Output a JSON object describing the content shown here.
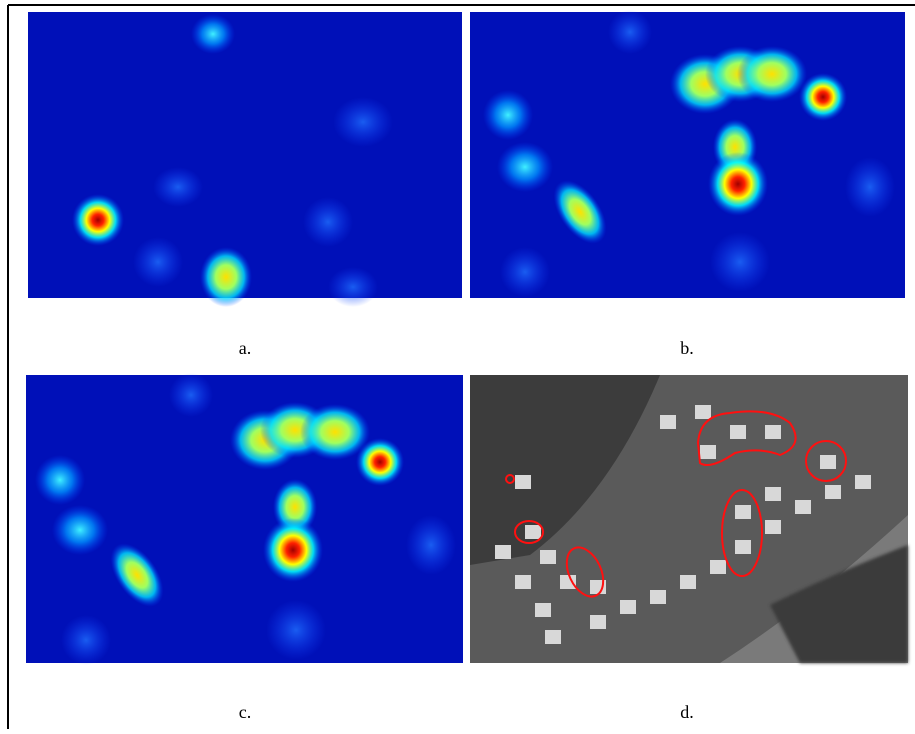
{
  "panels": [
    {
      "caption": "a."
    },
    {
      "caption": "b."
    },
    {
      "caption": "c."
    },
    {
      "caption": "d."
    }
  ]
}
